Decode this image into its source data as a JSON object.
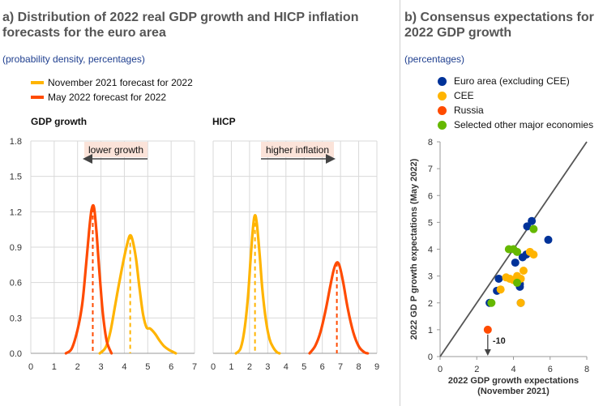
{
  "panel_a": {
    "title_line1": "a) Distribution of 2022 real GDP growth and HICP inflation",
    "title_line2": "forecasts for the euro area",
    "subtitle": "(probability density, percentages)",
    "legend": [
      {
        "label": "November 2021 forecast for 2022",
        "color": "#FFB400"
      },
      {
        "label": "May 2022 forecast for 2022",
        "color": "#FF4B00"
      }
    ]
  },
  "panel_b": {
    "title_line1": "b) Consensus expectations for",
    "title_line2": "2022 GDP growth",
    "subtitle": "(percentages)",
    "legend": [
      {
        "label": "Euro area (excluding CEE)",
        "color": "#003299"
      },
      {
        "label": "CEE",
        "color": "#FFB400"
      },
      {
        "label": "Russia",
        "color": "#FF4B00"
      },
      {
        "label": "Selected other major economies",
        "color": "#65B800"
      }
    ]
  },
  "chart_data": [
    {
      "type": "line",
      "title": "GDP growth",
      "annotation": "lower growth",
      "annotation_arrow": "left",
      "xlim": [
        0,
        7
      ],
      "ylim": [
        0,
        1.8
      ],
      "xticks": [
        "0",
        "1",
        "2",
        "3",
        "4",
        "5",
        "6",
        "7"
      ],
      "yticks": [
        "0.0",
        "0.3",
        "0.6",
        "0.9",
        "1.2",
        "1.5",
        "1.8"
      ],
      "grid": true,
      "series": [
        {
          "name": "November 2021 forecast for 2022",
          "color": "#FFB400",
          "mean": 4.25,
          "x": [
            2.95,
            3.2,
            3.4,
            3.6,
            3.8,
            4.0,
            4.15,
            4.25,
            4.35,
            4.5,
            4.65,
            4.8,
            4.95,
            5.1,
            5.3,
            5.5,
            5.7,
            5.9,
            6.1,
            6.2
          ],
          "y": [
            0.0,
            0.05,
            0.18,
            0.4,
            0.62,
            0.82,
            0.95,
            1.0,
            0.96,
            0.8,
            0.55,
            0.33,
            0.22,
            0.21,
            0.17,
            0.11,
            0.06,
            0.03,
            0.01,
            0.0
          ]
        },
        {
          "name": "May 2022 forecast for 2022",
          "color": "#FF4B00",
          "mean": 2.65,
          "x": [
            1.5,
            1.75,
            2.0,
            2.2,
            2.35,
            2.5,
            2.6,
            2.7,
            2.8,
            2.9,
            3.0,
            3.1,
            3.25,
            3.45
          ],
          "y": [
            0.0,
            0.04,
            0.2,
            0.42,
            0.72,
            1.05,
            1.22,
            1.24,
            1.05,
            0.78,
            0.52,
            0.3,
            0.1,
            0.0
          ]
        }
      ]
    },
    {
      "type": "line",
      "title": "HICP",
      "annotation": "higher inflation",
      "annotation_arrow": "right",
      "xlim": [
        0,
        9
      ],
      "ylim": [
        0,
        1.8
      ],
      "xticks": [
        "0",
        "1",
        "2",
        "3",
        "4",
        "5",
        "6",
        "7",
        "8",
        "9"
      ],
      "grid": true,
      "series": [
        {
          "name": "November 2021 forecast for 2022",
          "color": "#FFB400",
          "mean": 2.3,
          "x": [
            1.25,
            1.5,
            1.7,
            1.9,
            2.05,
            2.2,
            2.3,
            2.4,
            2.55,
            2.7,
            2.9,
            3.1,
            3.3,
            3.5,
            3.65
          ],
          "y": [
            0.0,
            0.04,
            0.18,
            0.45,
            0.78,
            1.08,
            1.17,
            1.1,
            0.85,
            0.55,
            0.28,
            0.12,
            0.05,
            0.01,
            0.0
          ]
        },
        {
          "name": "May 2022 forecast for 2022",
          "color": "#FF4B00",
          "mean": 6.8,
          "x": [
            5.3,
            5.6,
            5.9,
            6.2,
            6.45,
            6.65,
            6.8,
            6.95,
            7.15,
            7.4,
            7.7,
            8.0,
            8.3,
            8.5
          ],
          "y": [
            0.0,
            0.06,
            0.18,
            0.38,
            0.58,
            0.72,
            0.77,
            0.74,
            0.6,
            0.38,
            0.18,
            0.06,
            0.01,
            0.0
          ]
        }
      ]
    },
    {
      "type": "scatter",
      "xlabel_line1": "2022 GDP growth expectations",
      "xlabel_line2": "(November 2021)",
      "ylabel": "2022 GD P growth expectations (May 2022)",
      "xlim": [
        0,
        8
      ],
      "ylim": [
        0,
        8
      ],
      "xticks": [
        "0",
        "2",
        "4",
        "6",
        "8"
      ],
      "yticks": [
        "0",
        "1",
        "2",
        "3",
        "4",
        "5",
        "6",
        "7",
        "8"
      ],
      "diagonal": true,
      "off_chart_label": "-10",
      "series": [
        {
          "name": "Euro area (excluding CEE)",
          "color": "#003299",
          "points": [
            [
              2.7,
              2.0
            ],
            [
              3.1,
              2.45
            ],
            [
              3.2,
              2.9
            ],
            [
              4.1,
              3.5
            ],
            [
              4.35,
              2.6
            ],
            [
              4.35,
              2.7
            ],
            [
              4.5,
              3.7
            ],
            [
              4.7,
              3.8
            ],
            [
              4.75,
              4.85
            ],
            [
              5.0,
              5.05
            ],
            [
              5.9,
              4.35
            ],
            [
              4.4,
              2.0
            ]
          ]
        },
        {
          "name": "CEE",
          "color": "#FFB400",
          "points": [
            [
              3.3,
              2.5
            ],
            [
              3.6,
              2.95
            ],
            [
              3.8,
              2.9
            ],
            [
              4.0,
              2.85
            ],
            [
              4.2,
              3.0
            ],
            [
              4.4,
              2.9
            ],
            [
              4.55,
              3.2
            ],
            [
              4.9,
              3.9
            ],
            [
              5.1,
              3.8
            ],
            [
              4.4,
              2.0
            ]
          ]
        },
        {
          "name": "Russia",
          "color": "#FF4B00",
          "points": [
            [
              2.6,
              1.0
            ]
          ]
        },
        {
          "name": "Selected other major economies",
          "color": "#65B800",
          "points": [
            [
              2.8,
              2.0
            ],
            [
              3.75,
              4.0
            ],
            [
              4.0,
              4.0
            ],
            [
              4.2,
              3.9
            ],
            [
              4.2,
              2.75
            ],
            [
              5.1,
              4.75
            ]
          ]
        }
      ]
    }
  ]
}
